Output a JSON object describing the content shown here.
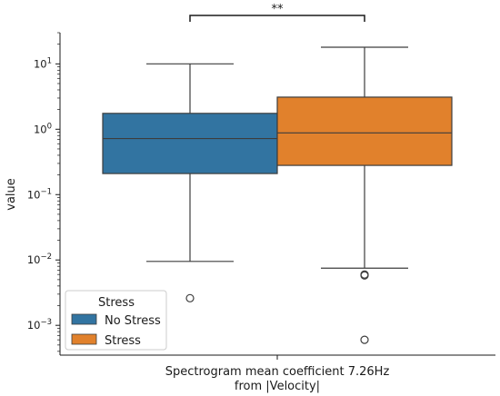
{
  "chart_data": {
    "type": "box",
    "xlabel_lines": [
      "Spectrogram mean coefficient 7.26Hz",
      "from |Velocity|"
    ],
    "ylabel": "value",
    "yscale": "log",
    "ylim": [
      0.00035,
      30
    ],
    "y_ticks": [
      {
        "value": 0.001,
        "base": "10",
        "exp": "−3"
      },
      {
        "value": 0.01,
        "base": "10",
        "exp": "−2"
      },
      {
        "value": 0.1,
        "base": "10",
        "exp": "−1"
      },
      {
        "value": 1,
        "base": "10",
        "exp": "0"
      },
      {
        "value": 10,
        "base": "10",
        "exp": "1"
      }
    ],
    "series": [
      {
        "name": "No Stress",
        "color": "#3274a1",
        "whisker_low": 0.0095,
        "q1": 0.21,
        "median": 0.72,
        "q3": 1.75,
        "whisker_high": 10.0,
        "outliers": [
          0.0026
        ]
      },
      {
        "name": "Stress",
        "color": "#e1812c",
        "whisker_low": 0.0075,
        "q1": 0.28,
        "median": 0.88,
        "q3": 3.1,
        "whisker_high": 18.0,
        "outliers": [
          0.006,
          0.0058,
          0.0006
        ]
      }
    ],
    "annotation": {
      "text": "**",
      "from": "No Stress",
      "to": "Stress"
    },
    "legend": {
      "title": "Stress",
      "placement": "lower-left",
      "items": [
        "No Stress",
        "Stress"
      ]
    },
    "grid": false
  }
}
